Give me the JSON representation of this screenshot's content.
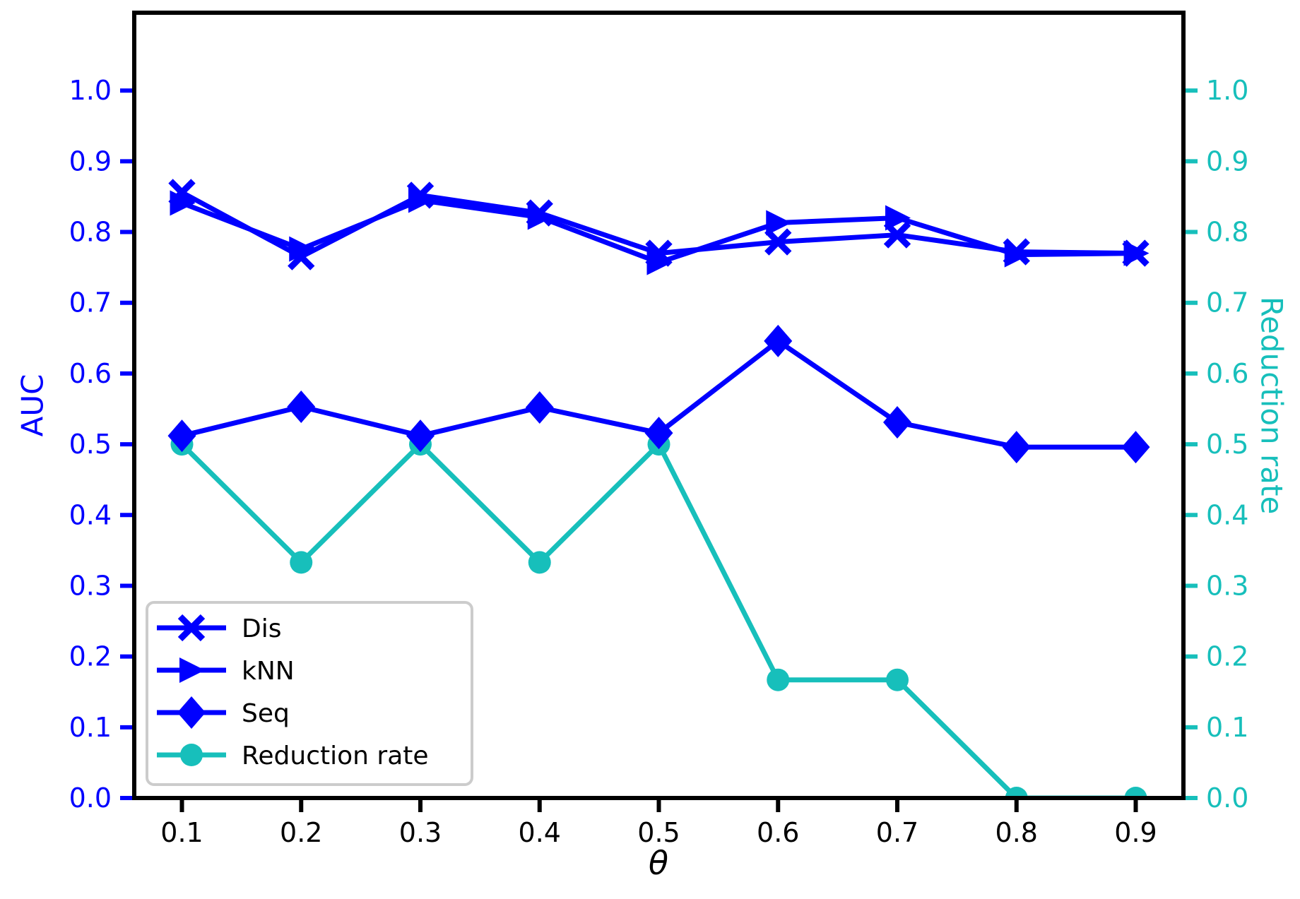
{
  "chart_data": {
    "type": "line",
    "title": "",
    "xlabel": "θ",
    "ylabel_left": "AUC",
    "ylabel_right": "Reduction rate",
    "left_axis_color": "#0000FF",
    "right_axis_color": "#17BFBB",
    "xlim": [
      0.06,
      0.94
    ],
    "ylim": [
      0.0,
      1.11
    ],
    "grid": false,
    "legend_position": "lower-left",
    "x": [
      0.1,
      0.2,
      0.3,
      0.4,
      0.5,
      0.6,
      0.7,
      0.8,
      0.9
    ],
    "xticks": [
      0.1,
      0.2,
      0.3,
      0.4,
      0.5,
      0.6,
      0.7,
      0.8,
      0.9
    ],
    "yticks": [
      0.0,
      0.1,
      0.2,
      0.3,
      0.4,
      0.5,
      0.6,
      0.7,
      0.8,
      0.9,
      1.0
    ],
    "series": [
      {
        "name": "Dis",
        "marker": "x",
        "color": "#0000FF",
        "axis": "left",
        "values": [
          0.856,
          0.765,
          0.852,
          0.827,
          0.77,
          0.786,
          0.796,
          0.772,
          0.77
        ]
      },
      {
        "name": "kNN",
        "marker": "triangle-right",
        "color": "#0000FF",
        "axis": "left",
        "values": [
          0.841,
          0.776,
          0.845,
          0.821,
          0.757,
          0.813,
          0.82,
          0.768,
          0.77
        ]
      },
      {
        "name": "Seq",
        "marker": "diamond",
        "color": "#0000FF",
        "axis": "left",
        "values": [
          0.512,
          0.553,
          0.512,
          0.552,
          0.516,
          0.646,
          0.531,
          0.496,
          0.496
        ]
      },
      {
        "name": "Reduction rate",
        "marker": "circle",
        "color": "#17BFBB",
        "axis": "right",
        "values": [
          0.5,
          0.333,
          0.5,
          0.333,
          0.5,
          0.167,
          0.167,
          0.0,
          0.0
        ]
      }
    ]
  }
}
